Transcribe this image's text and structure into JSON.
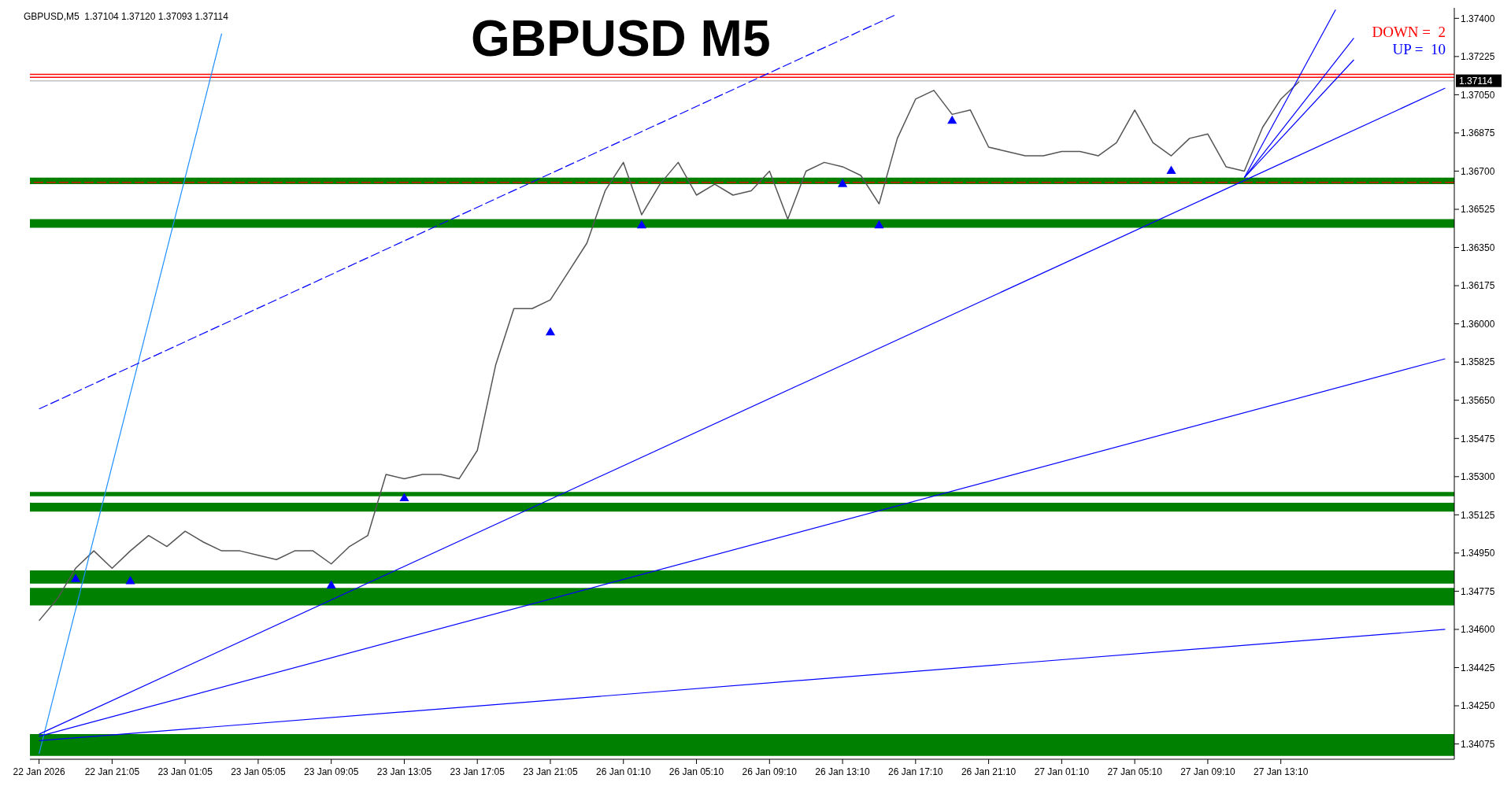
{
  "chart_data": {
    "type": "line",
    "title": "GBPUSD M5",
    "annotations": [
      "GBPUSD,M5  1.37104 1.37120 1.37093 1.37114",
      "DOWN =  2",
      "UP =  10"
    ],
    "categories": [
      "22 Jan 2026",
      null,
      null,
      null,
      "22 Jan 21:05",
      null,
      null,
      null,
      "23 Jan 01:05",
      null,
      null,
      null,
      "23 Jan 05:05",
      null,
      null,
      null,
      "23 Jan 09:05",
      null,
      null,
      null,
      "23 Jan 13:05",
      null,
      null,
      null,
      "23 Jan 17:05",
      null,
      null,
      null,
      "23 Jan 21:05",
      null,
      null,
      null,
      "26 Jan 01:10",
      null,
      null,
      null,
      "26 Jan 05:10",
      null,
      null,
      null,
      "26 Jan 09:10",
      null,
      null,
      null,
      "26 Jan 13:10",
      null,
      null,
      null,
      "26 Jan 17:10",
      null,
      null,
      null,
      "26 Jan 21:10",
      null,
      null,
      null,
      "27 Jan 01:10",
      null,
      null,
      null,
      "27 Jan 05:10",
      null,
      null,
      null,
      "27 Jan 09:10",
      null,
      null,
      null,
      "27 Jan 13:10",
      null,
      null,
      null,
      null,
      null,
      null,
      null,
      null,
      null
    ],
    "series": [
      {
        "color": "#555555",
        "values": [
          1.3464,
          1.3474,
          1.3488,
          1.3496,
          1.3488,
          1.3496,
          1.3503,
          1.3498,
          1.3505,
          1.35,
          1.3496,
          1.3496,
          1.3494,
          1.3492,
          1.3496,
          1.3496,
          1.349,
          1.3498,
          1.3503,
          1.3531,
          1.3529,
          1.3531,
          1.3531,
          1.3529,
          1.3542,
          1.3581,
          1.3607,
          1.3607,
          1.3611,
          1.3624,
          1.3637,
          1.3661,
          1.3674,
          1.365,
          1.3664,
          1.3674,
          1.3659,
          1.3664,
          1.3659,
          1.3661,
          1.367,
          1.3648,
          1.367,
          1.3674,
          1.3672,
          1.3668,
          1.3655,
          1.3685,
          1.3703,
          1.3707,
          1.3696,
          1.3698,
          1.3681,
          1.3679,
          1.3677,
          1.3677,
          1.3679,
          1.3679,
          1.3677,
          1.3683,
          1.3698,
          1.3683,
          1.3677,
          1.3685,
          1.3687,
          1.3672,
          1.367,
          1.369,
          1.3703,
          1.3711,
          null,
          null,
          null,
          null,
          null,
          null,
          null,
          null
        ]
      },
      {
        "color": "#1e90ff",
        "values": [
          1.3403,
          null,
          null,
          null,
          null,
          null,
          null,
          null,
          null,
          null,
          1.3733,
          null,
          null,
          null,
          null,
          null,
          null,
          null,
          null,
          null,
          null,
          null,
          null,
          null,
          null,
          null,
          null,
          null,
          null,
          null,
          null,
          null,
          null,
          null,
          null,
          null,
          null,
          null,
          null,
          null,
          null,
          null,
          null,
          null,
          null,
          null,
          null,
          null,
          null,
          null,
          null,
          null,
          null,
          null,
          null,
          null,
          null,
          null,
          null,
          null,
          null,
          null,
          null,
          null,
          null,
          null,
          null,
          null,
          null,
          null,
          null,
          null,
          null,
          null,
          null,
          null,
          null,
          null
        ]
      },
      {
        "color": "#0000ff",
        "line_style": "dashed",
        "values": [
          1.3561,
          null,
          null,
          null,
          null,
          null,
          null,
          null,
          null,
          null,
          null,
          null,
          null,
          null,
          null,
          null,
          null,
          null,
          null,
          null,
          null,
          null,
          null,
          null,
          null,
          null,
          null,
          null,
          null,
          null,
          null,
          null,
          null,
          null,
          null,
          null,
          null,
          null,
          null,
          null,
          null,
          null,
          null,
          null,
          null,
          null,
          null,
          1.3742,
          null,
          null,
          null,
          null,
          null,
          null,
          null,
          null,
          null,
          null,
          null,
          null,
          null,
          null,
          null,
          null,
          null,
          null,
          null,
          null,
          null,
          null,
          null,
          null,
          null,
          null,
          null,
          null,
          null,
          null
        ]
      },
      {
        "color": "#0000ff",
        "values": [
          1.3412,
          null,
          null,
          null,
          null,
          null,
          null,
          null,
          null,
          null,
          null,
          null,
          null,
          null,
          null,
          null,
          null,
          null,
          null,
          null,
          null,
          null,
          null,
          null,
          null,
          null,
          null,
          null,
          null,
          null,
          null,
          null,
          null,
          null,
          null,
          null,
          null,
          null,
          null,
          null,
          null,
          null,
          null,
          null,
          null,
          null,
          null,
          null,
          null,
          null,
          null,
          null,
          null,
          null,
          null,
          null,
          null,
          null,
          null,
          null,
          null,
          null,
          null,
          null,
          null,
          null,
          null,
          null,
          null,
          null,
          null,
          null,
          null,
          null,
          null,
          null,
          null,
          1.3708
        ]
      },
      {
        "color": "#0000ff",
        "values": [
          1.3411,
          null,
          null,
          null,
          null,
          null,
          null,
          null,
          null,
          null,
          null,
          null,
          null,
          null,
          null,
          null,
          null,
          null,
          null,
          null,
          null,
          null,
          null,
          null,
          null,
          null,
          null,
          null,
          null,
          null,
          null,
          null,
          null,
          null,
          null,
          null,
          null,
          null,
          null,
          null,
          null,
          null,
          null,
          null,
          null,
          null,
          null,
          null,
          null,
          null,
          null,
          null,
          null,
          null,
          null,
          null,
          null,
          null,
          null,
          null,
          null,
          null,
          null,
          null,
          null,
          null,
          null,
          null,
          null,
          null,
          null,
          null,
          null,
          null,
          null,
          null,
          null,
          1.3584
        ]
      },
      {
        "color": "#0000ff",
        "values": [
          1.3409,
          null,
          null,
          null,
          null,
          null,
          null,
          null,
          null,
          null,
          null,
          null,
          null,
          null,
          null,
          null,
          null,
          null,
          null,
          null,
          null,
          null,
          null,
          null,
          null,
          null,
          null,
          null,
          null,
          null,
          null,
          null,
          null,
          null,
          null,
          null,
          null,
          null,
          null,
          null,
          null,
          null,
          null,
          null,
          null,
          null,
          null,
          null,
          null,
          null,
          null,
          null,
          null,
          null,
          null,
          null,
          null,
          null,
          null,
          null,
          null,
          null,
          null,
          null,
          null,
          null,
          null,
          null,
          null,
          null,
          null,
          null,
          null,
          null,
          null,
          null,
          null,
          1.346
        ]
      },
      {
        "color": "#0000ff",
        "values": [
          null,
          null,
          null,
          null,
          null,
          null,
          null,
          null,
          null,
          null,
          null,
          null,
          null,
          null,
          null,
          null,
          null,
          null,
          null,
          null,
          null,
          null,
          null,
          null,
          null,
          null,
          null,
          null,
          null,
          null,
          null,
          null,
          null,
          null,
          null,
          null,
          null,
          null,
          null,
          null,
          null,
          null,
          null,
          null,
          null,
          null,
          null,
          null,
          null,
          null,
          null,
          null,
          null,
          null,
          null,
          null,
          null,
          null,
          null,
          null,
          null,
          null,
          null,
          null,
          null,
          null,
          1.3667,
          null,
          null,
          null,
          null,
          1.3744,
          null,
          null,
          null,
          null,
          null,
          null
        ]
      },
      {
        "color": "#0000ff",
        "values": [
          null,
          null,
          null,
          null,
          null,
          null,
          null,
          null,
          null,
          null,
          null,
          null,
          null,
          null,
          null,
          null,
          null,
          null,
          null,
          null,
          null,
          null,
          null,
          null,
          null,
          null,
          null,
          null,
          null,
          null,
          null,
          null,
          null,
          null,
          null,
          null,
          null,
          null,
          null,
          null,
          null,
          null,
          null,
          null,
          null,
          null,
          null,
          null,
          null,
          null,
          null,
          null,
          null,
          null,
          null,
          null,
          null,
          null,
          null,
          null,
          null,
          null,
          null,
          null,
          null,
          null,
          1.3667,
          null,
          null,
          null,
          null,
          null,
          1.3731,
          null,
          null,
          null,
          null,
          null
        ]
      },
      {
        "color": "#0000ff",
        "values": [
          null,
          null,
          null,
          null,
          null,
          null,
          null,
          null,
          null,
          null,
          null,
          null,
          null,
          null,
          null,
          null,
          null,
          null,
          null,
          null,
          null,
          null,
          null,
          null,
          null,
          null,
          null,
          null,
          null,
          null,
          null,
          null,
          null,
          null,
          null,
          null,
          null,
          null,
          null,
          null,
          null,
          null,
          null,
          null,
          null,
          null,
          null,
          null,
          null,
          null,
          null,
          null,
          null,
          null,
          null,
          null,
          null,
          null,
          null,
          null,
          null,
          null,
          null,
          null,
          null,
          null,
          1.3667,
          null,
          null,
          null,
          null,
          null,
          1.3721,
          null,
          null,
          null,
          null,
          null
        ]
      },
      {
        "type": "scatter",
        "marker": "triangle",
        "color": "#0000ff",
        "values": [
          null,
          null,
          1.3483,
          null,
          null,
          1.3482,
          null,
          null,
          null,
          null,
          null,
          null,
          null,
          null,
          null,
          null,
          1.348,
          null,
          null,
          null,
          1.352,
          null,
          null,
          null,
          null,
          null,
          null,
          null,
          1.3596,
          null,
          null,
          null,
          null,
          1.3645,
          null,
          null,
          null,
          null,
          null,
          null,
          null,
          null,
          null,
          null,
          1.3664,
          null,
          1.3645,
          null,
          null,
          null,
          1.3693,
          null,
          null,
          null,
          null,
          null,
          null,
          null,
          null,
          null,
          null,
          null,
          1.367,
          null,
          null,
          null,
          null,
          null,
          null,
          null,
          null,
          null,
          null,
          null,
          null,
          null,
          null,
          null
        ]
      }
    ],
    "ylim": [
      1.34005,
      1.37448
    ],
    "yticks": [
      {
        "value": 1.34075,
        "label": "1.34075"
      },
      {
        "value": 1.3425,
        "label": "1.34250"
      },
      {
        "value": 1.34425,
        "label": "1.34425"
      },
      {
        "value": 1.346,
        "label": "1.34600"
      },
      {
        "value": 1.34775,
        "label": "1.34775"
      },
      {
        "value": 1.3495,
        "label": "1.34950"
      },
      {
        "value": 1.35125,
        "label": "1.35125"
      },
      {
        "value": 1.353,
        "label": "1.35300"
      },
      {
        "value": 1.35475,
        "label": "1.35475"
      },
      {
        "value": 1.3565,
        "label": "1.35650"
      },
      {
        "value": 1.35825,
        "label": "1.35825"
      },
      {
        "value": 1.36,
        "label": "1.36000"
      },
      {
        "value": 1.36175,
        "label": "1.36175"
      },
      {
        "value": 1.3635,
        "label": "1.36350"
      },
      {
        "value": 1.36525,
        "label": "1.36525"
      },
      {
        "value": 1.367,
        "label": "1.36700"
      },
      {
        "value": 1.36875,
        "label": "1.36875"
      },
      {
        "value": 1.3705,
        "label": "1.37050"
      },
      {
        "value": 1.37225,
        "label": "1.37225"
      },
      {
        "value": 1.374,
        "label": "1.37400"
      }
    ],
    "bands": [
      {
        "axis": "y",
        "from": 1.3402,
        "to": 1.3412,
        "color": "#008000"
      },
      {
        "axis": "y",
        "from": 1.3471,
        "to": 1.3479,
        "color": "#008000"
      },
      {
        "axis": "y",
        "from": 1.3481,
        "to": 1.3487,
        "color": "#008000"
      },
      {
        "axis": "y",
        "from": 1.3514,
        "to": 1.3518,
        "color": "#008000"
      },
      {
        "axis": "y",
        "from": 1.3521,
        "to": 1.3523,
        "color": "#008000"
      },
      {
        "axis": "y",
        "from": 1.3644,
        "to": 1.3648,
        "color": "#008000"
      },
      {
        "axis": "y",
        "from": 1.3664,
        "to": 1.3667,
        "color": "#008000"
      }
    ],
    "ref_lines": [
      {
        "axis": "y",
        "value": 1.37143,
        "color": "#ff0000"
      },
      {
        "axis": "y",
        "value": 1.3713,
        "color": "#ff0000"
      },
      {
        "axis": "y",
        "value": 1.36648,
        "color": "#ff0000",
        "line_style": "dashed"
      },
      {
        "axis": "y",
        "value": 1.37114,
        "label": "1.37114",
        "color": "#c0c0c0"
      }
    ],
    "grid": false,
    "legend": false,
    "marker": "none",
    "line_style": "solid"
  }
}
